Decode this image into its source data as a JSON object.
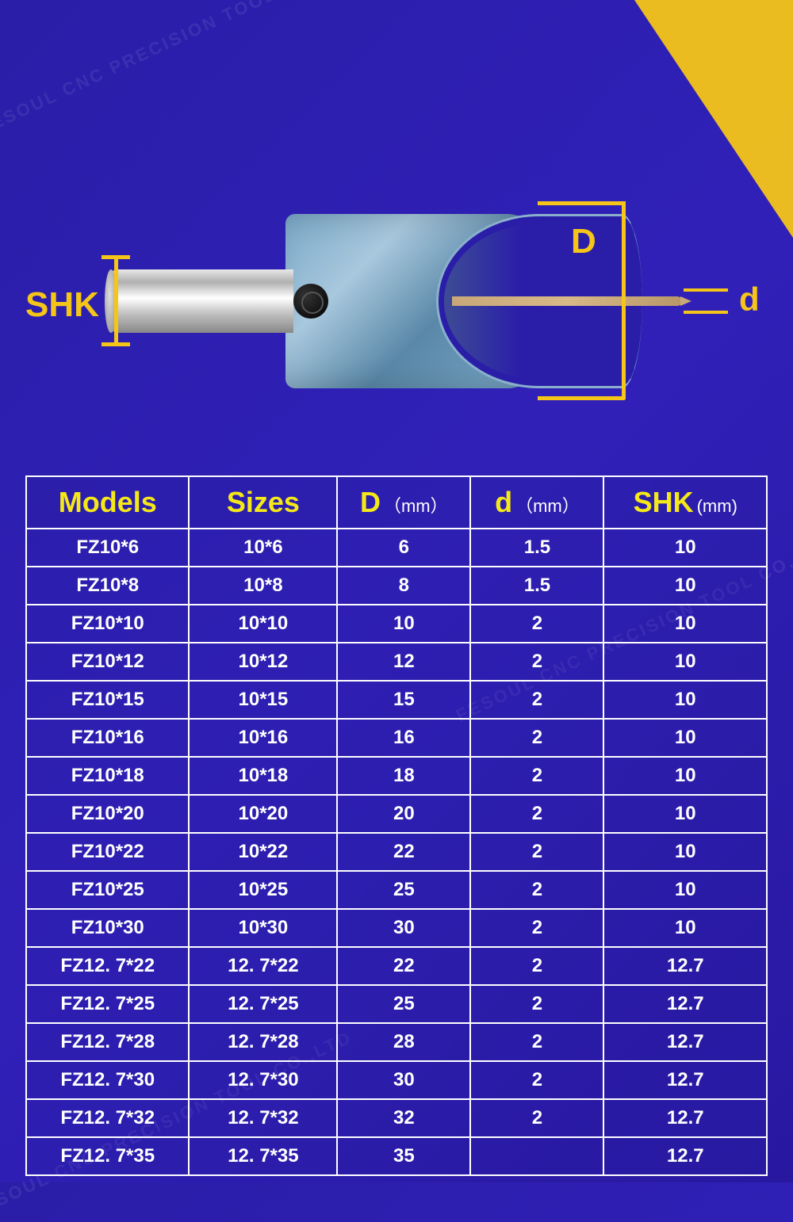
{
  "watermark_text": "FESOUL CNC PRECISION TOOL CO.,LTD",
  "diagram": {
    "label_shk": "SHK",
    "label_D": "D",
    "label_d": "d",
    "accent_color": "#f5c518",
    "bg_color": "#2a1ea8"
  },
  "table": {
    "headers": {
      "models": "Models",
      "sizes": "Sizes",
      "D": "D",
      "D_unit": "（mm）",
      "d": "d",
      "d_unit": "（mm）",
      "shk": "SHK",
      "shk_unit": "(mm)"
    },
    "header_color": "#f5e818",
    "text_color": "#ffffff",
    "border_color": "#ffffff",
    "header_fontsize": 36,
    "cell_fontsize": 24,
    "rows": [
      {
        "model": "FZ10*6",
        "size": "10*6",
        "D": "6",
        "d": "1.5",
        "shk": "10"
      },
      {
        "model": "FZ10*8",
        "size": "10*8",
        "D": "8",
        "d": "1.5",
        "shk": "10"
      },
      {
        "model": "FZ10*10",
        "size": "10*10",
        "D": "10",
        "d": "2",
        "shk": "10"
      },
      {
        "model": "FZ10*12",
        "size": "10*12",
        "D": "12",
        "d": "2",
        "shk": "10"
      },
      {
        "model": "FZ10*15",
        "size": "10*15",
        "D": "15",
        "d": "2",
        "shk": "10"
      },
      {
        "model": "FZ10*16",
        "size": "10*16",
        "D": "16",
        "d": "2",
        "shk": "10"
      },
      {
        "model": "FZ10*18",
        "size": "10*18",
        "D": "18",
        "d": "2",
        "shk": "10"
      },
      {
        "model": "FZ10*20",
        "size": "10*20",
        "D": "20",
        "d": "2",
        "shk": "10"
      },
      {
        "model": "FZ10*22",
        "size": "10*22",
        "D": "22",
        "d": "2",
        "shk": "10"
      },
      {
        "model": "FZ10*25",
        "size": "10*25",
        "D": "25",
        "d": "2",
        "shk": "10"
      },
      {
        "model": "FZ10*30",
        "size": "10*30",
        "D": "30",
        "d": "2",
        "shk": "10"
      },
      {
        "model": "FZ12. 7*22",
        "size": "12. 7*22",
        "D": "22",
        "d": "2",
        "shk": "12.7"
      },
      {
        "model": "FZ12. 7*25",
        "size": "12. 7*25",
        "D": "25",
        "d": "2",
        "shk": "12.7"
      },
      {
        "model": "FZ12. 7*28",
        "size": "12. 7*28",
        "D": "28",
        "d": "2",
        "shk": "12.7"
      },
      {
        "model": "FZ12. 7*30",
        "size": "12. 7*30",
        "D": "30",
        "d": "2",
        "shk": "12.7"
      },
      {
        "model": "FZ12. 7*32",
        "size": "12. 7*32",
        "D": "32",
        "d": "2",
        "shk": "12.7"
      },
      {
        "model": "FZ12. 7*35",
        "size": "12. 7*35",
        "D": "35",
        "d": "",
        "shk": "12.7"
      }
    ]
  }
}
